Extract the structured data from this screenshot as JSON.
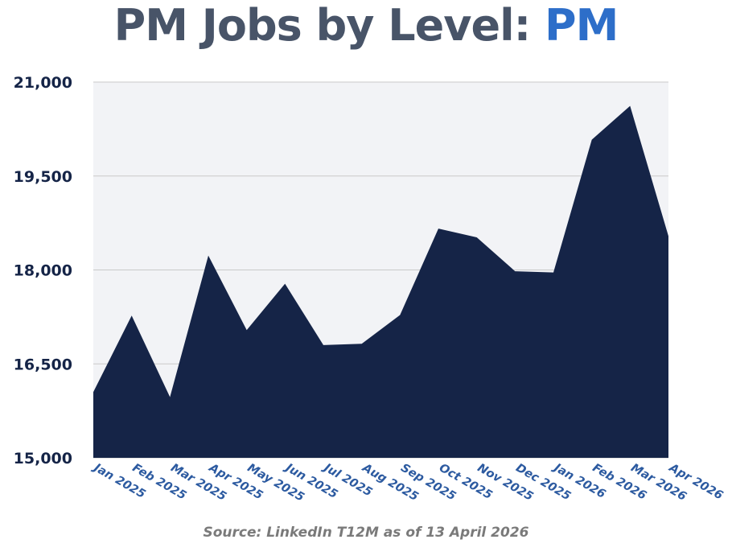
{
  "header": {
    "title_main": "PM Jobs by Level: ",
    "title_highlight": "PM"
  },
  "footer": {
    "source": "Source: LinkedIn T12M as of 13 April 2026"
  },
  "colors": {
    "area": "#152447",
    "plot_bg": "#f2f3f6",
    "grid": "#c9c9c9",
    "title": "#485468",
    "highlight": "#2d6ec9",
    "x_tick": "#2c5aa0",
    "y_tick": "#152447"
  },
  "chart_data": {
    "type": "area",
    "title": "PM Jobs by Level: PM",
    "xlabel": "",
    "ylabel": "",
    "ylim": [
      15000,
      21000
    ],
    "yticks": [
      15000,
      16500,
      18000,
      19500,
      21000
    ],
    "ytick_labels": [
      "15,000",
      "16,500",
      "18,000",
      "19,500",
      "21,000"
    ],
    "grid": true,
    "x": [
      "Jan 2025",
      "Feb 2025",
      "Mar 2025",
      "Apr 2025",
      "May 2025",
      "Jun 2025",
      "Jul 2025",
      "Aug 2025",
      "Sep 2025",
      "Oct 2025",
      "Nov 2025",
      "Dec 2025",
      "Jan 2026",
      "Feb 2026",
      "Mar 2026",
      "Apr 2026"
    ],
    "series": [
      {
        "values": [
          16050,
          17270,
          15970,
          18230,
          17040,
          17780,
          16800,
          16820,
          17280,
          18660,
          18520,
          17980,
          17960,
          20080,
          20620,
          18540
        ]
      }
    ]
  }
}
